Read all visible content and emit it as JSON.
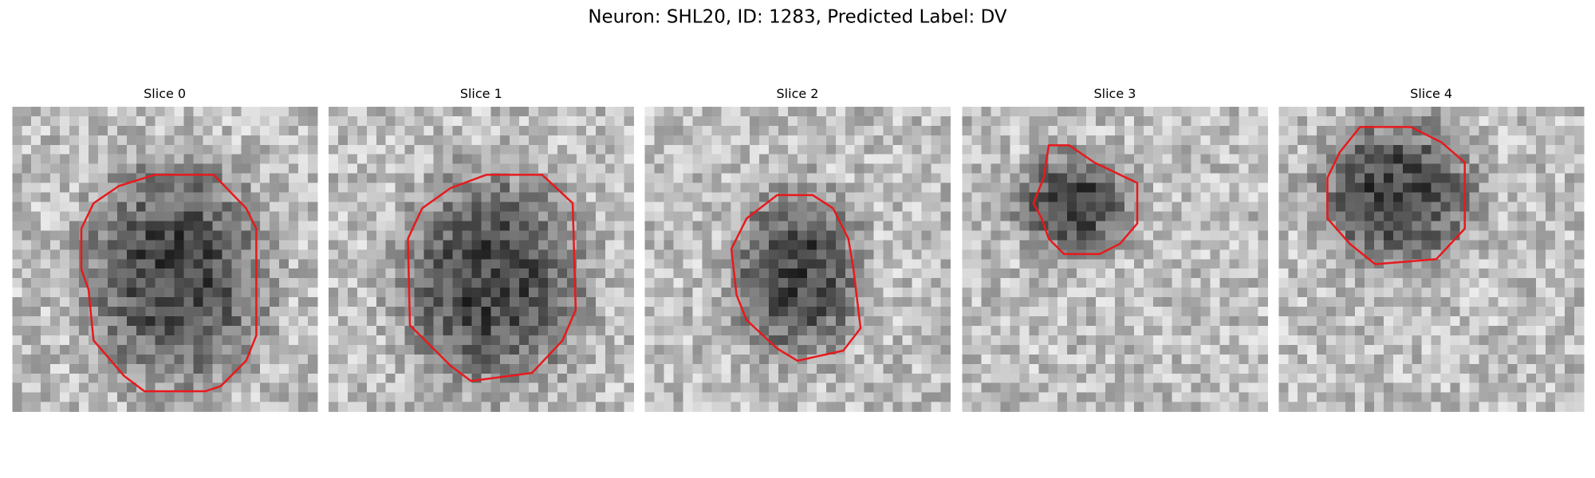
{
  "title": "Neuron: SHL20, ID: 1283, Predicted Label: DV",
  "panels": [
    {
      "title": "Slice 0"
    },
    {
      "title": "Slice 1"
    },
    {
      "title": "Slice 2"
    },
    {
      "title": "Slice 3"
    },
    {
      "title": "Slice 4"
    }
  ]
}
